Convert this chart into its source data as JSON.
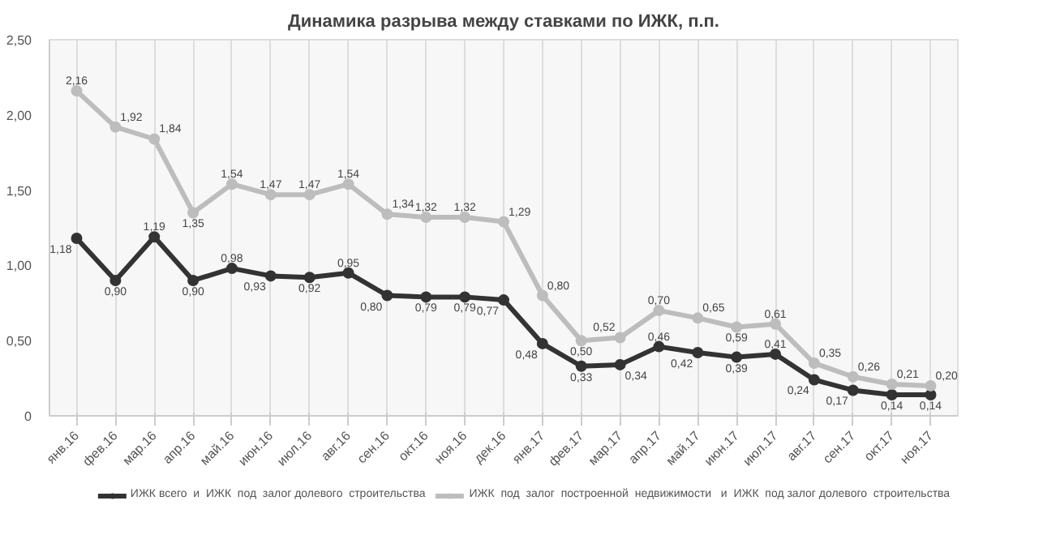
{
  "chart_data": {
    "type": "line",
    "title": "Динамика разрыва между ставками по ИЖК, п.п.",
    "categories": [
      "янв.16",
      "фев.16",
      "мар.16",
      "апр.16",
      "май.16",
      "июн.16",
      "июл.16",
      "авг.16",
      "сен.16",
      "окт.16",
      "ноя.16",
      "дек.16",
      "янв.17",
      "фев.17",
      "мар.17",
      "апр.17",
      "май.17",
      "июн.17",
      "июл.17",
      "авг.17",
      "сен.17",
      "окт.17",
      "ноя.17"
    ],
    "series": [
      {
        "name": "ИЖК всего  и  ИЖК  под  залог долевого  строительства",
        "color": "#333333",
        "values": [
          1.18,
          0.9,
          1.19,
          0.9,
          0.98,
          0.93,
          0.92,
          0.95,
          0.8,
          0.79,
          0.79,
          0.77,
          0.48,
          0.33,
          0.34,
          0.46,
          0.42,
          0.39,
          0.41,
          0.24,
          0.17,
          0.14,
          0.14
        ],
        "value_labels": [
          "1,18",
          "0,90",
          "1,19",
          "0,90",
          "0,98",
          "0,93",
          "0,92",
          "0,95",
          "0,80",
          "0,79",
          "0,79",
          "0,77",
          "0,48",
          "0,33",
          "0,34",
          "0,46",
          "0,42",
          "0,39",
          "0,41",
          "0,24",
          "0,17",
          "0,14",
          "0,14"
        ]
      },
      {
        "name": "ИЖК  под  залог  построенной  недвижимости   и  ИЖК  под залог долевого  строительства",
        "color": "#bdbdbd",
        "values": [
          2.16,
          1.92,
          1.84,
          1.35,
          1.54,
          1.47,
          1.47,
          1.54,
          1.34,
          1.32,
          1.32,
          1.29,
          0.8,
          0.5,
          0.52,
          0.7,
          0.65,
          0.59,
          0.61,
          0.35,
          0.26,
          0.21,
          0.2
        ],
        "value_labels": [
          "2,16",
          "1,92",
          "1,84",
          "1,35",
          "1,54",
          "1,47",
          "1,47",
          "1,54",
          "1,34",
          "1,32",
          "1,32",
          "1,29",
          "0,80",
          "0,50",
          "0,52",
          "0,70",
          "0,65",
          "0,59",
          "0,61",
          "0,35",
          "0,26",
          "0,21",
          "0,20"
        ]
      }
    ],
    "ylim": [
      0,
      2.5
    ],
    "yticks": [
      0,
      {
        "value": 0.5,
        "label": "0,50"
      },
      {
        "value": 1,
        "label": "1,00"
      },
      {
        "value": 1.5,
        "label": "1,50"
      },
      {
        "value": 2,
        "label": "2,00"
      },
      {
        "value": 2.5,
        "label": "2,50"
      }
    ],
    "grid": "x",
    "legend": "bottom",
    "marker": "circle",
    "line_style": "solid"
  }
}
